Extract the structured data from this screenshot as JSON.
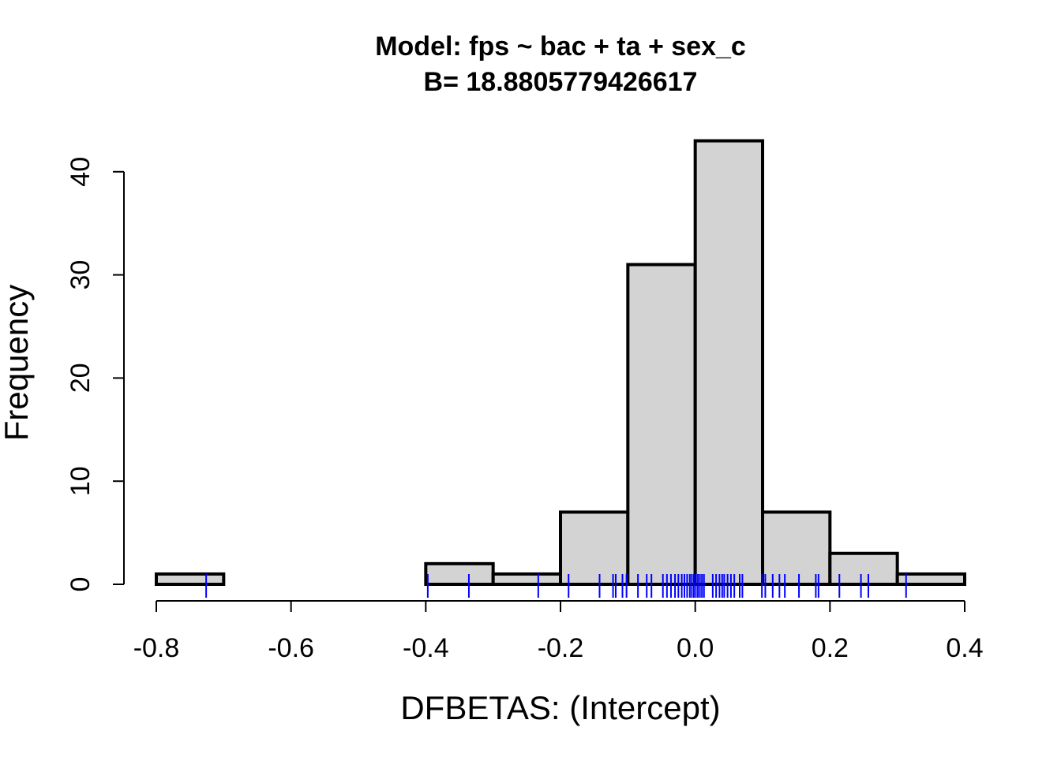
{
  "chart_data": {
    "type": "bar",
    "title": "Model: fps ~ bac + ta + sex_c",
    "subtitle": "B= 18.8805779426617",
    "xlabel": "DFBETAS: (Intercept)",
    "ylabel": "Frequency",
    "xlim": [
      -0.8,
      0.4
    ],
    "ylim": [
      0,
      43
    ],
    "x_ticks": [
      -0.8,
      -0.6,
      -0.4,
      -0.2,
      0.0,
      0.2,
      0.4
    ],
    "x_tick_labels": [
      "-0.8",
      "-0.6",
      "-0.4",
      "-0.2",
      "0.0",
      "0.2",
      "0.4"
    ],
    "y_ticks": [
      0,
      10,
      20,
      30,
      40
    ],
    "y_tick_labels": [
      "0",
      "10",
      "20",
      "30",
      "40"
    ],
    "bins": [
      {
        "from": -0.8,
        "to": -0.7,
        "count": 1
      },
      {
        "from": -0.7,
        "to": -0.6,
        "count": 0
      },
      {
        "from": -0.6,
        "to": -0.5,
        "count": 0
      },
      {
        "from": -0.5,
        "to": -0.4,
        "count": 0
      },
      {
        "from": -0.4,
        "to": -0.3,
        "count": 2
      },
      {
        "from": -0.3,
        "to": -0.2,
        "count": 1
      },
      {
        "from": -0.2,
        "to": -0.1,
        "count": 7
      },
      {
        "from": -0.1,
        "to": 0.0,
        "count": 31
      },
      {
        "from": 0.0,
        "to": 0.1,
        "count": 43
      },
      {
        "from": 0.1,
        "to": 0.2,
        "count": 7
      },
      {
        "from": 0.2,
        "to": 0.3,
        "count": 3
      },
      {
        "from": 0.3,
        "to": 0.4,
        "count": 1
      }
    ],
    "rug": [
      -0.726,
      -0.397,
      -0.336,
      -0.233,
      -0.188,
      -0.142,
      -0.122,
      -0.118,
      -0.108,
      -0.102,
      -0.085,
      -0.072,
      -0.065,
      -0.048,
      -0.042,
      -0.036,
      -0.03,
      -0.025,
      -0.02,
      -0.016,
      -0.012,
      -0.008,
      -0.005,
      -0.002,
      0.001,
      0.004,
      0.007,
      0.01,
      0.013,
      0.026,
      0.031,
      0.036,
      0.04,
      0.043,
      0.048,
      0.053,
      0.058,
      0.066,
      0.07,
      0.099,
      0.104,
      0.115,
      0.125,
      0.133,
      0.154,
      0.179,
      0.183,
      0.214,
      0.246,
      0.257,
      0.313
    ],
    "bar_fill": "#d3d3d3",
    "bar_stroke": "#000000",
    "rug_color": "#0000ff",
    "grid": false,
    "legend": "none"
  }
}
